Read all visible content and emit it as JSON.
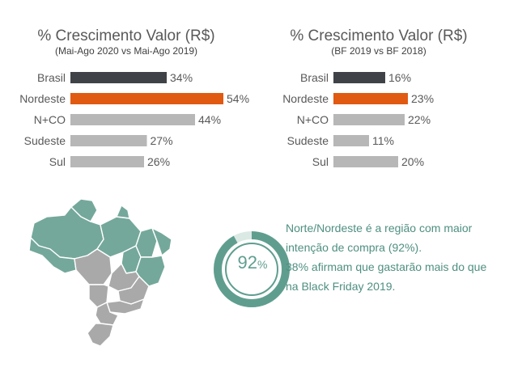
{
  "chart_data": [
    {
      "type": "bar",
      "title": "% Crescimento Valor (R$)",
      "subtitle": "(Mai-Ago 2020  vs Mai-Ago 2019)",
      "categories": [
        "Brasil",
        "Nordeste",
        "N+CO",
        "Sudeste",
        "Sul"
      ],
      "values": [
        34,
        54,
        44,
        27,
        26
      ],
      "value_labels": [
        "34%",
        "54%",
        "44%",
        "27%",
        "26%"
      ],
      "colors": [
        "#3f4347",
        "#e05a12",
        "#b7b7b7",
        "#b7b7b7",
        "#b7b7b7"
      ],
      "orientation": "horizontal",
      "grid": false,
      "legend": "none"
    },
    {
      "type": "bar",
      "title": "% Crescimento Valor (R$)",
      "subtitle": "(BF 2019 vs BF 2018)",
      "categories": [
        "Brasil",
        "Nordeste",
        "N+CO",
        "Sudeste",
        "Sul"
      ],
      "values": [
        16,
        23,
        22,
        11,
        20
      ],
      "value_labels": [
        "16%",
        "23%",
        "22%",
        "11%",
        "20%"
      ],
      "colors": [
        "#3f4347",
        "#e05a12",
        "#b7b7b7",
        "#b7b7b7",
        "#b7b7b7"
      ],
      "orientation": "horizontal",
      "grid": false,
      "legend": "none"
    }
  ],
  "donut": {
    "value": 92,
    "label": "92",
    "unit": "%",
    "color": "#5f9e8f",
    "track_color": "#dbe9e5"
  },
  "map": {
    "highlight_color": "#74a89b",
    "other_color": "#a9a9a9"
  },
  "note": {
    "line1": "Norte/Nordeste é a região com maior",
    "line2": "intenção de compra (92%).",
    "line3": "38% afirmam que gastarão mais do que",
    "line4": "na Black Friday 2019."
  }
}
